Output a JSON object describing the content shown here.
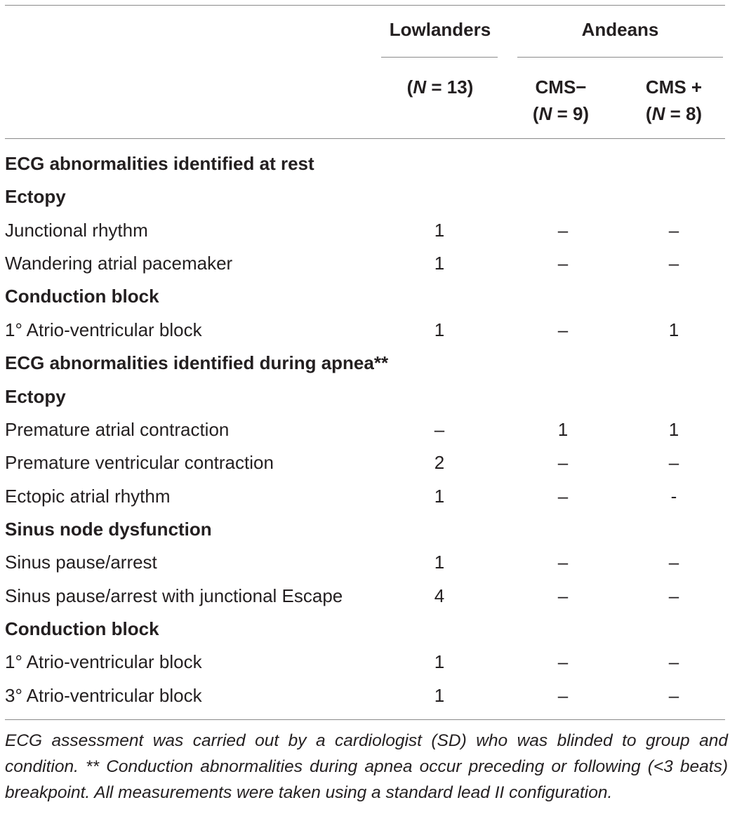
{
  "header": {
    "lowlanders": "Lowlanders",
    "andeans": "Andeans",
    "lowlanders_n_prefix": "(",
    "lowlanders_n_var": "N",
    "lowlanders_n_rest": " = 13)",
    "cms_neg_label": "CMS−",
    "cms_neg_n_prefix": "(",
    "cms_neg_n_var": "N",
    "cms_neg_n_rest": " = 9)",
    "cms_pos_label": "CMS +",
    "cms_pos_n_prefix": "(",
    "cms_pos_n_var": "N",
    "cms_pos_n_rest": " = 8)"
  },
  "rows": [
    {
      "label": "ECG abnormalities identified at rest",
      "type": "section"
    },
    {
      "label": "Ectopy",
      "type": "section"
    },
    {
      "label": "Junctional rhythm",
      "type": "data",
      "v1": "1",
      "v2": "–",
      "v3": "–"
    },
    {
      "label": "Wandering atrial pacemaker",
      "type": "data",
      "v1": "1",
      "v2": "–",
      "v3": "–"
    },
    {
      "label": "Conduction block",
      "type": "section"
    },
    {
      "label": "1° Atrio-ventricular block",
      "type": "data",
      "v1": "1",
      "v2": "–",
      "v3": "1"
    },
    {
      "label": "ECG abnormalities identified during apnea**",
      "type": "section"
    },
    {
      "label": "Ectopy",
      "type": "section"
    },
    {
      "label": "Premature atrial contraction",
      "type": "data",
      "v1": "–",
      "v2": "1",
      "v3": "1"
    },
    {
      "label": "Premature ventricular contraction",
      "type": "data",
      "v1": "2",
      "v2": "–",
      "v3": "–"
    },
    {
      "label": "Ectopic atrial rhythm",
      "type": "data",
      "v1": "1",
      "v2": "–",
      "v3": "-"
    },
    {
      "label": "Sinus node dysfunction",
      "type": "section"
    },
    {
      "label": "Sinus pause/arrest",
      "type": "data",
      "v1": "1",
      "v2": "–",
      "v3": "–"
    },
    {
      "label": "Sinus pause/arrest with junctional Escape",
      "type": "data",
      "v1": "4",
      "v2": "–",
      "v3": "–"
    },
    {
      "label": "Conduction block",
      "type": "section"
    },
    {
      "label": "1° Atrio-ventricular block",
      "type": "data",
      "v1": "1",
      "v2": "–",
      "v3": "–"
    },
    {
      "label": "3° Atrio-ventricular block",
      "type": "data",
      "v1": "1",
      "v2": "–",
      "v3": "–"
    }
  ],
  "footnote": "ECG assessment was carried out by a cardiologist (SD) who was blinded to group and condition. ** Conduction abnormalities during apnea occur preceding or following (<3 beats) breakpoint. All measurements were taken using a standard lead II configuration."
}
